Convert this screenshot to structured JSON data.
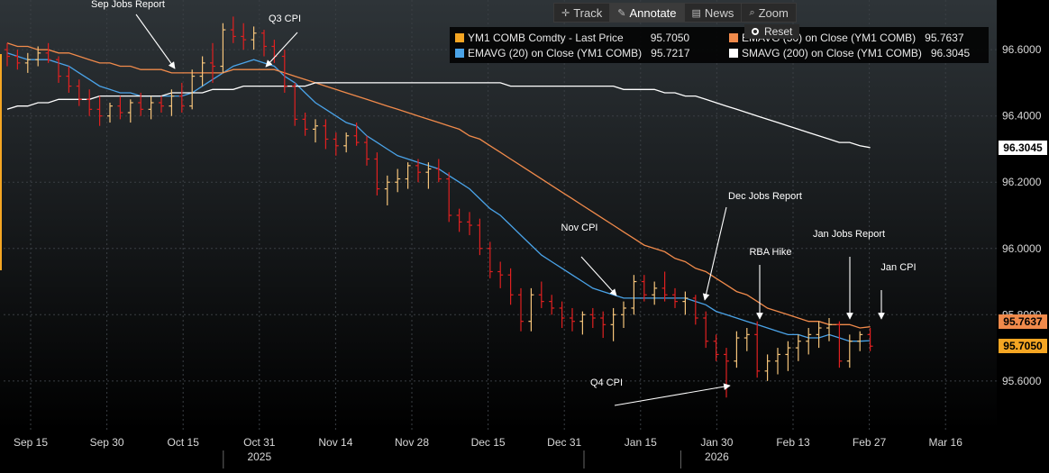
{
  "toolbar": {
    "track": "Track",
    "annotate": "Annotate",
    "news": "News",
    "zoom": "Zoom",
    "reset": "Reset"
  },
  "legend": {
    "items": [
      {
        "name": "YM1 COMB Comdty - Last Price",
        "value": "95.7050",
        "color": "#f5a623"
      },
      {
        "name": "EMAVG (50)  on Close (YM1 COMB)",
        "value": "95.7637",
        "color": "#f08a4b"
      },
      {
        "name": "EMAVG (20)  on Close (YM1 COMB)",
        "value": "95.7217",
        "color": "#4aa3e8"
      },
      {
        "name": "SMAVG (200)  on Close (YM1 COMB)",
        "value": "96.3045",
        "color": "#ffffff"
      }
    ]
  },
  "price_tags": [
    {
      "value": "96.3045",
      "color": "#ffffff",
      "text_color": "#000000"
    },
    {
      "value": "95.7637",
      "color": "#f08a4b",
      "text_color": "#000000"
    },
    {
      "value": "95.7050",
      "color": "#f5a623",
      "text_color": "#000000"
    }
  ],
  "chart_data": {
    "type": "line",
    "title": "",
    "ylim": [
      95.45,
      96.75
    ],
    "y_ticks": [
      {
        "label": "96.6000",
        "value": 96.6
      },
      {
        "label": "96.4000",
        "value": 96.4
      },
      {
        "label": "96.2000",
        "value": 96.2
      },
      {
        "label": "96.0000",
        "value": 96.0
      },
      {
        "label": "95.8000",
        "value": 95.8
      },
      {
        "label": "95.6000",
        "value": 95.6
      }
    ],
    "x_ticks": [
      "Sep 15",
      "Sep 30",
      "Oct 15",
      "Oct 31",
      "Nov 14",
      "Nov 28",
      "Dec 15",
      "Dec 31",
      "Jan 15",
      "Jan 30",
      "Feb 13",
      "Feb 27",
      "Mar 16"
    ],
    "year_labels": [
      {
        "label": "2025",
        "after_tick": 3
      },
      {
        "label": "2026",
        "after_tick": 9
      }
    ],
    "grid": true,
    "series": [
      {
        "name": "YM1 COMB Comdty - Last Price",
        "kind": "bar_ohlc",
        "up_color": "#f5c47a",
        "down_color": "#e02020",
        "bars": [
          [
            96.6,
            96.62,
            96.55,
            96.58
          ],
          [
            96.58,
            96.6,
            96.54,
            96.56
          ],
          [
            96.56,
            96.59,
            96.53,
            96.57
          ],
          [
            96.57,
            96.61,
            96.55,
            96.59
          ],
          [
            96.59,
            96.62,
            96.56,
            96.57
          ],
          [
            96.57,
            96.58,
            96.5,
            96.52
          ],
          [
            96.52,
            96.55,
            96.47,
            96.49
          ],
          [
            96.49,
            96.51,
            96.43,
            96.45
          ],
          [
            96.45,
            96.48,
            96.4,
            96.42
          ],
          [
            96.42,
            96.46,
            96.37,
            96.4
          ],
          [
            96.4,
            96.44,
            96.38,
            96.43
          ],
          [
            96.43,
            96.46,
            96.39,
            96.41
          ],
          [
            96.41,
            96.45,
            96.38,
            96.44
          ],
          [
            96.44,
            96.47,
            96.4,
            96.42
          ],
          [
            96.42,
            96.46,
            96.39,
            96.44
          ],
          [
            96.44,
            96.46,
            96.41,
            96.43
          ],
          [
            96.43,
            96.48,
            96.4,
            96.46
          ],
          [
            96.46,
            96.5,
            96.41,
            96.43
          ],
          [
            96.43,
            96.54,
            96.42,
            96.52
          ],
          [
            96.52,
            96.58,
            96.49,
            96.56
          ],
          [
            96.56,
            96.62,
            96.5,
            96.55
          ],
          [
            96.55,
            96.68,
            96.53,
            96.66
          ],
          [
            96.66,
            96.7,
            96.62,
            96.64
          ],
          [
            96.64,
            96.68,
            96.6,
            96.63
          ],
          [
            96.63,
            96.67,
            96.6,
            96.65
          ],
          [
            96.65,
            96.66,
            96.58,
            96.61
          ],
          [
            96.61,
            96.63,
            96.56,
            96.58
          ],
          [
            96.58,
            96.6,
            96.47,
            96.49
          ],
          [
            96.49,
            96.5,
            96.37,
            96.39
          ],
          [
            96.39,
            96.41,
            96.34,
            96.36
          ],
          [
            96.36,
            96.39,
            96.32,
            96.37
          ],
          [
            96.37,
            96.39,
            96.3,
            96.33
          ],
          [
            96.33,
            96.35,
            96.28,
            96.31
          ],
          [
            96.31,
            96.35,
            96.29,
            96.34
          ],
          [
            96.34,
            96.38,
            96.31,
            96.32
          ],
          [
            96.32,
            96.34,
            96.25,
            96.27
          ],
          [
            96.27,
            96.29,
            96.16,
            96.18
          ],
          [
            96.18,
            96.22,
            96.13,
            96.2
          ],
          [
            96.2,
            96.24,
            96.17,
            96.21
          ],
          [
            96.21,
            96.26,
            96.18,
            96.25
          ],
          [
            96.25,
            96.27,
            96.2,
            96.23
          ],
          [
            96.23,
            96.26,
            96.18,
            96.24
          ],
          [
            96.24,
            96.27,
            96.2,
            96.21
          ],
          [
            96.21,
            96.23,
            96.08,
            96.1
          ],
          [
            96.1,
            96.12,
            96.05,
            96.08
          ],
          [
            96.08,
            96.11,
            96.04,
            96.07
          ],
          [
            96.07,
            96.09,
            95.98,
            96.0
          ],
          [
            96.0,
            96.02,
            95.91,
            95.93
          ],
          [
            95.93,
            95.96,
            95.88,
            95.92
          ],
          [
            95.92,
            95.94,
            95.83,
            95.86
          ],
          [
            95.86,
            95.88,
            95.75,
            95.78
          ],
          [
            95.78,
            95.88,
            95.75,
            95.86
          ],
          [
            95.86,
            95.9,
            95.82,
            95.84
          ],
          [
            95.84,
            95.86,
            95.8,
            95.82
          ],
          [
            95.82,
            95.84,
            95.76,
            95.79
          ],
          [
            95.79,
            95.82,
            95.75,
            95.78
          ],
          [
            95.78,
            95.81,
            95.74,
            95.8
          ],
          [
            95.8,
            95.82,
            95.76,
            95.79
          ],
          [
            95.79,
            95.81,
            95.73,
            95.77
          ],
          [
            95.77,
            95.82,
            95.72,
            95.8
          ],
          [
            95.8,
            95.84,
            95.76,
            95.82
          ],
          [
            95.82,
            95.92,
            95.8,
            95.9
          ],
          [
            95.9,
            95.92,
            95.84,
            95.86
          ],
          [
            95.86,
            95.9,
            95.83,
            95.88
          ],
          [
            95.88,
            95.93,
            95.84,
            95.86
          ],
          [
            95.86,
            95.88,
            95.82,
            95.84
          ],
          [
            95.84,
            95.87,
            95.8,
            95.85
          ],
          [
            95.85,
            95.86,
            95.77,
            95.79
          ],
          [
            95.79,
            95.81,
            95.7,
            95.72
          ],
          [
            95.72,
            95.74,
            95.66,
            95.68
          ],
          [
            95.68,
            95.7,
            95.55,
            95.66
          ],
          [
            95.66,
            95.75,
            95.64,
            95.73
          ],
          [
            95.73,
            95.76,
            95.69,
            95.74
          ],
          [
            95.74,
            95.78,
            95.61,
            95.63
          ],
          [
            95.63,
            95.68,
            95.6,
            95.66
          ],
          [
            95.66,
            95.7,
            95.62,
            95.68
          ],
          [
            95.68,
            95.72,
            95.63,
            95.7
          ],
          [
            95.7,
            95.74,
            95.66,
            95.72
          ],
          [
            95.72,
            95.76,
            95.68,
            95.74
          ],
          [
            95.74,
            95.78,
            95.7,
            95.76
          ],
          [
            95.76,
            95.79,
            95.72,
            95.77
          ],
          [
            95.77,
            95.78,
            95.64,
            95.66
          ],
          [
            95.66,
            95.74,
            95.64,
            95.72
          ],
          [
            95.72,
            95.75,
            95.69,
            95.74
          ],
          [
            95.74,
            95.76,
            95.69,
            95.705
          ]
        ]
      },
      {
        "name": "EMAVG (20)  on Close (YM1 COMB)",
        "kind": "line",
        "color": "#4aa3e8",
        "values": [
          96.59,
          96.58,
          96.57,
          96.57,
          96.57,
          96.56,
          96.55,
          96.53,
          96.51,
          96.49,
          96.48,
          96.47,
          96.47,
          96.46,
          96.46,
          96.46,
          96.46,
          96.46,
          96.47,
          96.49,
          96.51,
          96.53,
          96.55,
          96.56,
          96.57,
          96.56,
          96.55,
          96.52,
          96.5,
          96.47,
          96.44,
          96.42,
          96.4,
          96.38,
          96.37,
          96.34,
          96.32,
          96.3,
          96.28,
          96.27,
          96.26,
          96.25,
          96.24,
          96.22,
          96.2,
          96.18,
          96.15,
          96.12,
          96.1,
          96.07,
          96.04,
          96.01,
          95.98,
          95.96,
          95.94,
          95.92,
          95.9,
          95.88,
          95.87,
          95.86,
          95.85,
          95.85,
          95.85,
          95.85,
          95.85,
          95.85,
          95.85,
          95.84,
          95.83,
          95.81,
          95.8,
          95.79,
          95.78,
          95.77,
          95.76,
          95.75,
          95.74,
          95.74,
          95.73,
          95.73,
          95.74,
          95.73,
          95.72,
          95.72,
          95.7217
        ]
      },
      {
        "name": "EMAVG (50)  on Close (YM1 COMB)",
        "kind": "line",
        "color": "#f08a4b",
        "values": [
          96.62,
          96.61,
          96.61,
          96.6,
          96.6,
          96.59,
          96.59,
          96.58,
          96.57,
          96.56,
          96.56,
          96.55,
          96.55,
          96.54,
          96.54,
          96.54,
          96.53,
          96.53,
          96.53,
          96.53,
          96.53,
          96.53,
          96.54,
          96.54,
          96.54,
          96.54,
          96.54,
          96.53,
          96.52,
          96.51,
          96.5,
          96.49,
          96.48,
          96.47,
          96.46,
          96.45,
          96.44,
          96.43,
          96.42,
          96.41,
          96.4,
          96.39,
          96.38,
          96.37,
          96.36,
          96.34,
          96.33,
          96.31,
          96.29,
          96.27,
          96.25,
          96.23,
          96.21,
          96.19,
          96.17,
          96.15,
          96.13,
          96.11,
          96.09,
          96.07,
          96.05,
          96.03,
          96.01,
          96.0,
          95.99,
          95.97,
          95.96,
          95.94,
          95.93,
          95.91,
          95.89,
          95.87,
          95.86,
          95.84,
          95.82,
          95.81,
          95.8,
          95.79,
          95.78,
          95.78,
          95.77,
          95.77,
          95.77,
          95.76,
          95.7637
        ]
      },
      {
        "name": "SMAVG (200)  on Close (YM1 COMB)",
        "kind": "line",
        "color": "#ffffff",
        "values": [
          96.42,
          96.43,
          96.43,
          96.44,
          96.44,
          96.45,
          96.45,
          96.45,
          96.45,
          96.46,
          96.46,
          96.46,
          96.46,
          96.46,
          96.46,
          96.46,
          96.47,
          96.47,
          96.47,
          96.47,
          96.48,
          96.48,
          96.48,
          96.49,
          96.49,
          96.49,
          96.49,
          96.49,
          96.49,
          96.49,
          96.5,
          96.5,
          96.5,
          96.5,
          96.5,
          96.5,
          96.5,
          96.5,
          96.5,
          96.5,
          96.5,
          96.5,
          96.5,
          96.5,
          96.5,
          96.5,
          96.5,
          96.5,
          96.5,
          96.49,
          96.49,
          96.49,
          96.49,
          96.49,
          96.49,
          96.49,
          96.49,
          96.49,
          96.49,
          96.49,
          96.48,
          96.48,
          96.48,
          96.48,
          96.47,
          96.47,
          96.46,
          96.46,
          96.45,
          96.44,
          96.43,
          96.42,
          96.41,
          96.4,
          96.39,
          96.38,
          96.37,
          96.36,
          96.35,
          96.34,
          96.33,
          96.32,
          96.32,
          96.31,
          96.3045
        ]
      }
    ],
    "annotations": [
      {
        "label": "Sep Jobs Report",
        "bar": 18,
        "y": 96.56
      },
      {
        "label": "Q3 CPI",
        "bar": 28,
        "y": 96.56
      },
      {
        "label": "Nov CPI",
        "bar": 62,
        "y": 95.85
      },
      {
        "label": "Dec Jobs Report",
        "bar": 70,
        "y": 95.82
      },
      {
        "label": "RBA Hike",
        "bar": 76,
        "y": 95.77
      },
      {
        "label": "Q4 CPI",
        "bar": 72,
        "y": 95.55
      },
      {
        "label": "Jan Jobs Report",
        "bar": 81,
        "y": 95.78
      },
      {
        "label": "Jan CPI",
        "bar": 84,
        "y": 95.76
      }
    ]
  }
}
